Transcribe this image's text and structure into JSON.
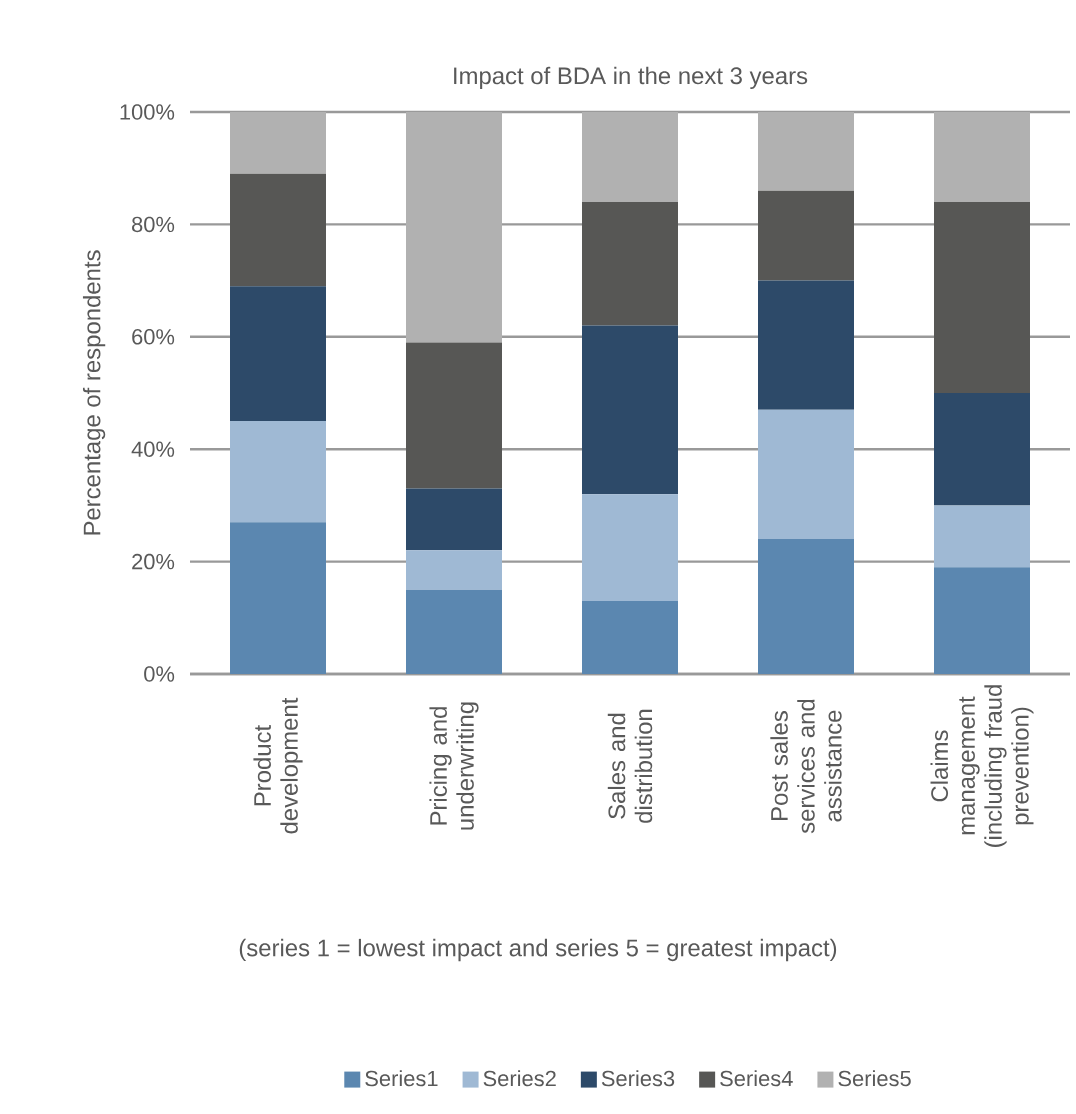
{
  "chart_data": {
    "type": "bar",
    "stacked": true,
    "title": "Impact of BDA  in the next 3 years",
    "ylabel": "Percentage of respondents",
    "categories": [
      "Product development",
      "Pricing and underwriting",
      "Sales and distribution",
      "Post sales services and assistance",
      "Claims management (including fraud prevention)"
    ],
    "series": [
      {
        "name": "Series1",
        "color": "#5b87b0",
        "values": [
          27,
          15,
          13,
          24,
          19
        ]
      },
      {
        "name": "Series2",
        "color": "#9fb9d4",
        "values": [
          18,
          7,
          19,
          23,
          11
        ]
      },
      {
        "name": "Series3",
        "color": "#2d4a69",
        "values": [
          24,
          11,
          30,
          23,
          20
        ]
      },
      {
        "name": "Series4",
        "color": "#575755",
        "values": [
          20,
          26,
          22,
          16,
          34
        ]
      },
      {
        "name": "Series5",
        "color": "#b1b1b1",
        "values": [
          11,
          41,
          16,
          14,
          16
        ]
      }
    ],
    "ylim": [
      0,
      100
    ],
    "yticks": [
      {
        "value": 0,
        "label": "0%"
      },
      {
        "value": 20,
        "label": "20%"
      },
      {
        "value": 40,
        "label": "40%"
      },
      {
        "value": 60,
        "label": "60%"
      },
      {
        "value": 80,
        "label": "80%"
      },
      {
        "value": 100,
        "label": "100%"
      }
    ],
    "grid": "y",
    "legend": "bottom",
    "annotations": [
      "(series 1 = lowest impact and series 5 = greatest impact)"
    ]
  }
}
